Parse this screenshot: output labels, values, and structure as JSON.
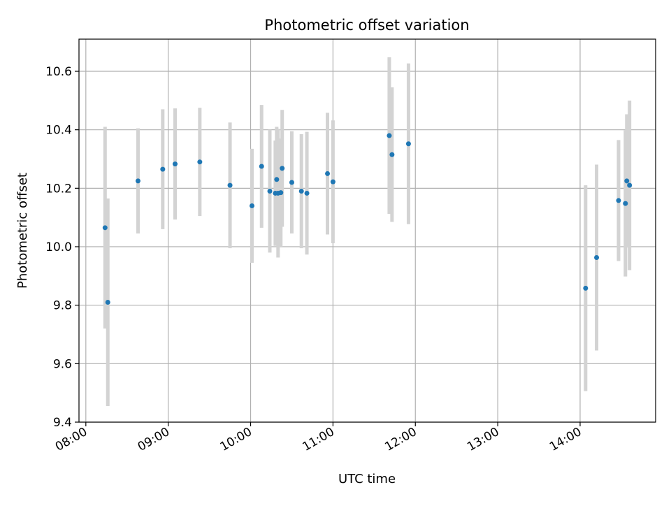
{
  "chart_data": {
    "type": "scatter",
    "title": "Photometric offset variation",
    "xlabel": "UTC time",
    "ylabel": "Photometric offset",
    "x_is_time": true,
    "xlim": [
      "07:55",
      "14:55"
    ],
    "ylim": [
      9.4,
      10.71
    ],
    "x_ticks": [
      "08:00",
      "09:00",
      "10:00",
      "11:00",
      "12:00",
      "13:00",
      "14:00"
    ],
    "y_ticks": [
      9.4,
      9.6,
      9.8,
      10.0,
      10.2,
      10.4,
      10.6
    ],
    "grid": true,
    "colors": {
      "point": "#1f77b4",
      "errorbar": "#d3d3d3",
      "grid": "#b0b0b0",
      "axis": "#000000"
    },
    "points": [
      {
        "x": "08:14",
        "y": 10.065,
        "err": 0.345
      },
      {
        "x": "08:16",
        "y": 9.81,
        "err": 0.355
      },
      {
        "x": "08:38",
        "y": 10.225,
        "err": 0.18
      },
      {
        "x": "08:56",
        "y": 10.265,
        "err": 0.205
      },
      {
        "x": "09:05",
        "y": 10.283,
        "err": 0.19
      },
      {
        "x": "09:23",
        "y": 10.29,
        "err": 0.185
      },
      {
        "x": "09:45",
        "y": 10.21,
        "err": 0.215
      },
      {
        "x": "10:01",
        "y": 10.14,
        "err": 0.195
      },
      {
        "x": "10:08",
        "y": 10.275,
        "err": 0.21
      },
      {
        "x": "10:14",
        "y": 10.19,
        "err": 0.21
      },
      {
        "x": "10:18",
        "y": 10.183,
        "err": 0.18
      },
      {
        "x": "10:19",
        "y": 10.23,
        "err": 0.18
      },
      {
        "x": "10:20",
        "y": 10.183,
        "err": 0.22
      },
      {
        "x": "10:22",
        "y": 10.185,
        "err": 0.185
      },
      {
        "x": "10:23",
        "y": 10.268,
        "err": 0.2
      },
      {
        "x": "10:30",
        "y": 10.22,
        "err": 0.175
      },
      {
        "x": "10:37",
        "y": 10.19,
        "err": 0.195
      },
      {
        "x": "10:41",
        "y": 10.183,
        "err": 0.21
      },
      {
        "x": "10:56",
        "y": 10.25,
        "err": 0.208
      },
      {
        "x": "11:00",
        "y": 10.222,
        "err": 0.21
      },
      {
        "x": "11:41",
        "y": 10.38,
        "err": 0.268
      },
      {
        "x": "11:43",
        "y": 10.315,
        "err": 0.23
      },
      {
        "x": "11:55",
        "y": 10.352,
        "err": 0.275
      },
      {
        "x": "14:04",
        "y": 9.858,
        "err": 0.352
      },
      {
        "x": "14:12",
        "y": 9.963,
        "err": 0.318
      },
      {
        "x": "14:28",
        "y": 10.158,
        "err": 0.207
      },
      {
        "x": "14:33",
        "y": 10.148,
        "err": 0.25
      },
      {
        "x": "14:34",
        "y": 10.225,
        "err": 0.228
      },
      {
        "x": "14:36",
        "y": 10.21,
        "err": 0.29
      }
    ]
  }
}
